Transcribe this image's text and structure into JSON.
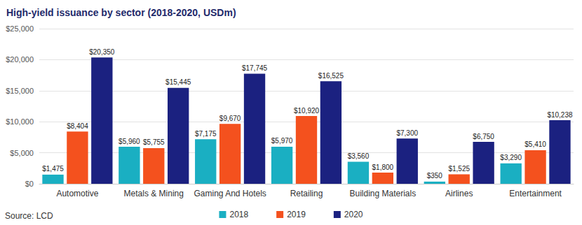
{
  "chart_data": {
    "type": "bar",
    "title": "High-yield issuance by sector (2018-2020, USDm)",
    "source": "Source: LCD",
    "categories": [
      "Automotive",
      "Metals & Mining",
      "Gaming And Hotels",
      "Retailing",
      "Building Materials",
      "Airlines",
      "Entertainment"
    ],
    "series": [
      {
        "name": "2018",
        "color": "#1aafc2",
        "values": [
          1475,
          5960,
          7175,
          5970,
          3560,
          350,
          3290
        ],
        "value_labels": [
          "$1,475",
          "$5,960",
          "$7,175",
          "$5,970",
          "$3,560",
          "$350",
          "$3,290"
        ]
      },
      {
        "name": "2019",
        "color": "#f4511e",
        "values": [
          8404,
          5755,
          9670,
          10920,
          1800,
          1525,
          5410
        ],
        "value_labels": [
          "$8,404",
          "$5,755",
          "$9,670",
          "$10,920",
          "$1,800",
          "$1,525",
          "$5,410"
        ]
      },
      {
        "name": "2020",
        "color": "#1b2180",
        "values": [
          20350,
          15445,
          17745,
          16525,
          7300,
          6750,
          10238
        ],
        "value_labels": [
          "$20,350",
          "$15,445",
          "$17,745",
          "$16,525",
          "$7,300",
          "$6,750",
          "$10,238"
        ]
      }
    ],
    "ylim": [
      0,
      25000
    ],
    "yticks": [
      {
        "value": 0,
        "label": "$0"
      },
      {
        "value": 5000,
        "label": "$5,000"
      },
      {
        "value": 10000,
        "label": "$10,000"
      },
      {
        "value": 15000,
        "label": "$15,000"
      },
      {
        "value": 20000,
        "label": "$20,000"
      },
      {
        "value": 25000,
        "label": "$25,000"
      }
    ],
    "grid": true,
    "legend": "bottom",
    "data_labels": true
  }
}
